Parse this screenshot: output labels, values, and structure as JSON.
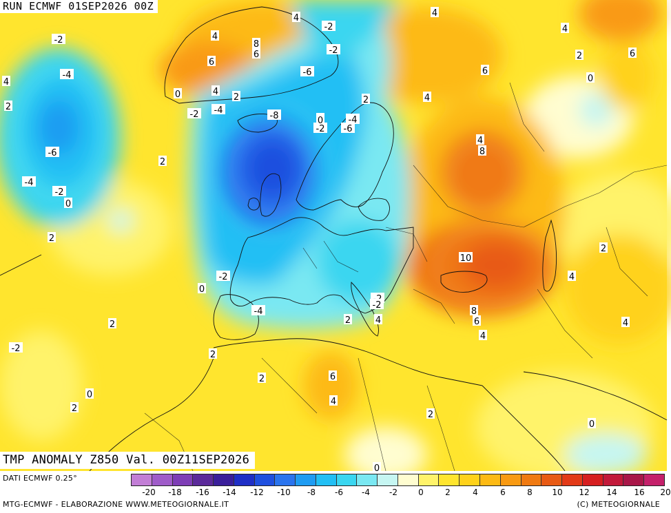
{
  "header": {
    "run_label": "RUN ECMWF 01SEP2026 00Z"
  },
  "title": "TMP ANOMALY Z850 Val. 00Z11SEP2026",
  "source_label": "DATI ECMWF 0.25°",
  "credit_left": "MTG-ECMWF - ELABORAZIONE WWW.METEOGIORNALE.IT",
  "credit_right": "(C) METEOGIORNALE",
  "legend": {
    "colors": [
      "#c27ed6",
      "#9f5cc9",
      "#7e3eb6",
      "#5b2a9a",
      "#3a1f9a",
      "#1f2fc6",
      "#1f50df",
      "#2a74ee",
      "#1f9cf2",
      "#22bff4",
      "#3ad6f0",
      "#7ae8f2",
      "#c6f6f2",
      "#fffdd0",
      "#fff36a",
      "#ffe52e",
      "#ffd21a",
      "#fdba14",
      "#f99a12",
      "#f07a12",
      "#e85a14",
      "#e23a18",
      "#d61f20",
      "#c21a3a",
      "#a81748",
      "#c4206a"
    ],
    "ticks": [
      "-20",
      "-18",
      "-16",
      "-14",
      "-12",
      "-10",
      "-8",
      "-6",
      "-4",
      "-2",
      "0",
      "2",
      "4",
      "6",
      "8",
      "10",
      "12",
      "14",
      "16",
      "20"
    ]
  },
  "contour_labels": [
    "-2",
    "4",
    "4",
    "8",
    "8",
    "-2",
    "6",
    "2",
    "-4",
    "4",
    "4",
    "-2",
    "6",
    "4",
    "2",
    "4",
    "6",
    "-6",
    "2",
    "0",
    "6",
    "0",
    "-4",
    "-2",
    "-4",
    "-8",
    "4",
    "8",
    "2",
    "-6",
    "4",
    "-2",
    "0",
    "-4",
    "-2",
    "-6",
    "2",
    "0",
    "0",
    "-2",
    "10",
    "2",
    "4",
    "-2",
    "0",
    "-2",
    "-4",
    "2",
    "4",
    "8",
    "6",
    "4",
    "2",
    "4",
    "2",
    "-2",
    "6",
    "2",
    "4",
    "0",
    "2",
    "2",
    "2",
    "0",
    "0"
  ],
  "map_meta": {
    "parameter": "Temperature anomaly at 850 hPa",
    "unit": "°C",
    "region": "Europe, North Atlantic, North Africa, Middle East"
  }
}
